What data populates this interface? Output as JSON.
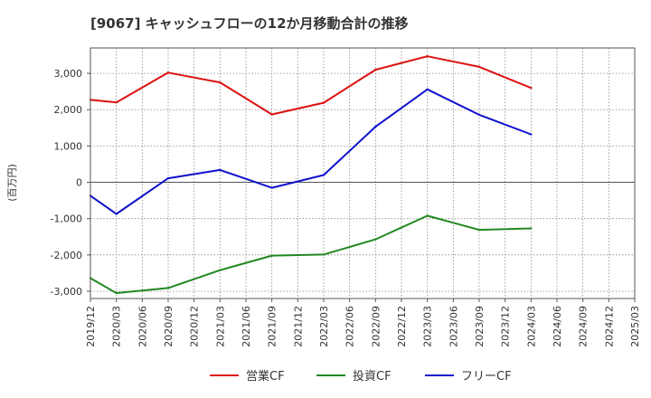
{
  "chart_data": {
    "type": "line",
    "title": "[9067]  キャッシュフローの12か月移動合計の推移",
    "ylabel": "(百万円)",
    "xlabel": "",
    "ylim": [
      -3200,
      3700
    ],
    "y_ticks": [
      3000,
      2000,
      1000,
      0,
      -1000,
      -2000,
      -3000
    ],
    "y_tick_labels": [
      "3,000",
      "2,000",
      "1,000",
      "0",
      "-1,000",
      "-2,000",
      "-3,000"
    ],
    "x_tick_labels": [
      "2019/12",
      "2020/03",
      "2020/06",
      "2020/09",
      "2020/12",
      "2021/03",
      "2021/06",
      "2021/09",
      "2021/12",
      "2022/03",
      "2022/06",
      "2022/09",
      "2022/12",
      "2023/03",
      "2023/06",
      "2023/09",
      "2023/12",
      "2024/03",
      "2024/06",
      "2024/09",
      "2024/12",
      "2025/03"
    ],
    "grid": true,
    "legend_position": "bottom",
    "series": [
      {
        "name": "営業CF",
        "color": "#dd1111",
        "points": [
          {
            "x": "2019/12",
            "y": 2270
          },
          {
            "x": "2020/03",
            "y": 2200
          },
          {
            "x": "2020/09",
            "y": 3020
          },
          {
            "x": "2021/03",
            "y": 2750
          },
          {
            "x": "2021/09",
            "y": 1870
          },
          {
            "x": "2022/03",
            "y": 2190
          },
          {
            "x": "2022/09",
            "y": 3100
          },
          {
            "x": "2023/03",
            "y": 3470
          },
          {
            "x": "2023/09",
            "y": 3180
          },
          {
            "x": "2024/03",
            "y": 2600
          }
        ]
      },
      {
        "name": "投資CF",
        "color": "#228822",
        "points": [
          {
            "x": "2019/12",
            "y": -2640
          },
          {
            "x": "2020/03",
            "y": -3050
          },
          {
            "x": "2020/09",
            "y": -2910
          },
          {
            "x": "2021/03",
            "y": -2420
          },
          {
            "x": "2021/09",
            "y": -2020
          },
          {
            "x": "2022/03",
            "y": -1990
          },
          {
            "x": "2022/09",
            "y": -1570
          },
          {
            "x": "2023/03",
            "y": -920
          },
          {
            "x": "2023/09",
            "y": -1310
          },
          {
            "x": "2024/03",
            "y": -1270
          }
        ]
      },
      {
        "name": "フリーCF",
        "color": "#1111cc",
        "points": [
          {
            "x": "2019/12",
            "y": -370
          },
          {
            "x": "2020/03",
            "y": -870
          },
          {
            "x": "2020/09",
            "y": 110
          },
          {
            "x": "2021/03",
            "y": 340
          },
          {
            "x": "2021/09",
            "y": -150
          },
          {
            "x": "2022/03",
            "y": 200
          },
          {
            "x": "2022/09",
            "y": 1530
          },
          {
            "x": "2023/03",
            "y": 2560
          },
          {
            "x": "2023/09",
            "y": 1860
          },
          {
            "x": "2024/03",
            "y": 1320
          }
        ]
      }
    ]
  }
}
